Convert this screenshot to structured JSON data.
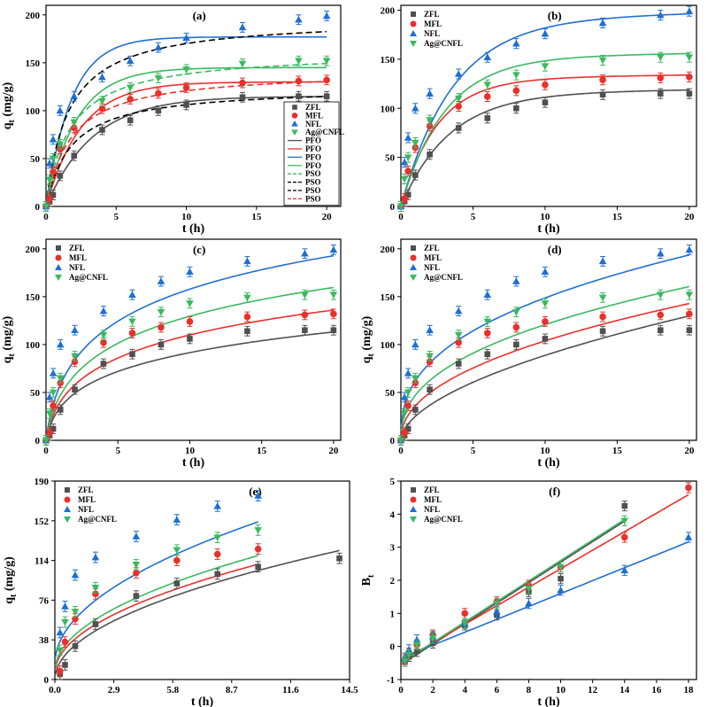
{
  "colors": {
    "ZFL": "#505050",
    "MFL": "#e8312c",
    "NFL": "#1f6fd0",
    "Ag@CNFL": "#3cb860"
  },
  "chart_data": [
    {
      "type": "scatter",
      "panel_label": "(a)",
      "xlabel": "t (h)",
      "ylabel": "q_t (mg/g)",
      "xlim": [
        0,
        21
      ],
      "ylim": [
        0,
        210
      ],
      "xticks": [
        0,
        5,
        10,
        15,
        20
      ],
      "yticks": [
        0,
        50,
        100,
        150,
        200
      ],
      "legend_position": "right-middle",
      "legend": [
        "ZFL",
        "MFL",
        "NFL",
        "Ag@CNFL",
        "PFO",
        "PFO",
        "PFO",
        "PFO",
        "PSO",
        "PSO",
        "PSO",
        "PSO"
      ],
      "x": [
        0,
        0.25,
        0.5,
        1,
        2,
        4,
        6,
        8,
        10,
        14,
        18,
        20
      ],
      "series": [
        {
          "name": "ZFL",
          "values": [
            0,
            5,
            12,
            32,
            53,
            80,
            90,
            100,
            106,
            114,
            115,
            115
          ]
        },
        {
          "name": "MFL",
          "values": [
            0,
            8,
            36,
            60,
            82,
            102,
            112,
            118,
            124,
            129,
            131,
            132
          ]
        },
        {
          "name": "NFL",
          "values": [
            0,
            45,
            70,
            100,
            115,
            135,
            152,
            166,
            176,
            187,
            195,
            199
          ]
        },
        {
          "name": "Ag@CNFL",
          "values": [
            0,
            28,
            50,
            65,
            88,
            110,
            124,
            134,
            143,
            149,
            152,
            152
          ]
        }
      ],
      "error_bar": 5,
      "fits": [
        {
          "model": "PFO",
          "series": "ZFL",
          "qe": 115,
          "k": 0.3
        },
        {
          "model": "PFO",
          "series": "MFL",
          "qe": 130,
          "k": 0.4
        },
        {
          "model": "PFO",
          "series": "NFL",
          "qe": 177,
          "k": 0.55
        },
        {
          "model": "PFO",
          "series": "Ag@CNFL",
          "qe": 145,
          "k": 0.45
        },
        {
          "model": "PSO",
          "series": "ZFL",
          "qe": 125,
          "k": 0.0045
        },
        {
          "model": "PSO",
          "series": "MFL",
          "qe": 142,
          "k": 0.004
        },
        {
          "model": "PSO",
          "series": "NFL",
          "qe": 197,
          "k": 0.0032
        },
        {
          "model": "PSO",
          "series": "Ag@CNFL",
          "qe": 162,
          "k": 0.0036
        }
      ]
    },
    {
      "type": "scatter",
      "panel_label": "(b)",
      "xlabel": "t (h)",
      "ylabel": "",
      "xlim": [
        0,
        20.5
      ],
      "ylim": [
        0,
        205
      ],
      "xticks": [
        0,
        5,
        10,
        15,
        20
      ],
      "yticks": [
        0,
        50,
        100,
        150,
        200
      ],
      "legend_position": "top-left",
      "legend": [
        "ZFL",
        "MFL",
        "NFL",
        "Ag@CNFL"
      ],
      "x": [
        0,
        0.25,
        0.5,
        1,
        2,
        4,
        6,
        8,
        10,
        14,
        18,
        20
      ],
      "series": [
        {
          "name": "ZFL",
          "values": [
            0,
            5,
            12,
            32,
            53,
            80,
            90,
            100,
            106,
            114,
            115,
            115
          ]
        },
        {
          "name": "MFL",
          "values": [
            0,
            8,
            36,
            60,
            82,
            102,
            112,
            118,
            124,
            129,
            131,
            132
          ]
        },
        {
          "name": "NFL",
          "values": [
            0,
            45,
            70,
            100,
            115,
            135,
            152,
            166,
            176,
            187,
            195,
            199
          ]
        },
        {
          "name": "Ag@CNFL",
          "values": [
            0,
            28,
            50,
            65,
            88,
            110,
            124,
            134,
            143,
            149,
            152,
            152
          ]
        }
      ],
      "error_bar": 5
    },
    {
      "type": "scatter",
      "panel_label": "(c)",
      "xlabel": "t (h)",
      "ylabel": "q_t (mg/g)",
      "xlim": [
        0,
        20.5
      ],
      "ylim": [
        0,
        210
      ],
      "xticks": [
        0,
        5,
        10,
        15,
        20
      ],
      "yticks": [
        0,
        50,
        100,
        150,
        200
      ],
      "legend_position": "top-left",
      "legend": [
        "ZFL",
        "MFL",
        "NFL",
        "Ag@CNFL"
      ],
      "x": [
        0,
        0.25,
        0.5,
        1,
        2,
        4,
        6,
        8,
        10,
        14,
        18,
        20
      ],
      "series": [
        {
          "name": "ZFL",
          "values": [
            0,
            5,
            12,
            32,
            53,
            80,
            90,
            100,
            106,
            114,
            115,
            115
          ]
        },
        {
          "name": "MFL",
          "values": [
            0,
            8,
            36,
            60,
            82,
            102,
            112,
            118,
            124,
            129,
            131,
            132
          ]
        },
        {
          "name": "NFL",
          "values": [
            0,
            45,
            70,
            100,
            115,
            135,
            152,
            166,
            176,
            187,
            195,
            199
          ]
        },
        {
          "name": "Ag@CNFL",
          "values": [
            0,
            28,
            50,
            65,
            88,
            110,
            124,
            134,
            143,
            149,
            152,
            152
          ]
        }
      ],
      "error_bar": 5
    },
    {
      "type": "scatter",
      "panel_label": "(d)",
      "xlabel": "t (h)",
      "ylabel": "q_t (mg/g)",
      "xlim": [
        0,
        20.5
      ],
      "ylim": [
        0,
        210
      ],
      "xticks": [
        0,
        5,
        10,
        15,
        20
      ],
      "yticks": [
        0,
        50,
        100,
        150,
        200
      ],
      "legend_position": "top-left",
      "legend": [
        "ZFL",
        "MFL",
        "NFL",
        "Ag@CNFL"
      ],
      "x": [
        0,
        0.25,
        0.5,
        1,
        2,
        4,
        6,
        8,
        10,
        14,
        18,
        20
      ],
      "series": [
        {
          "name": "ZFL",
          "values": [
            0,
            5,
            12,
            32,
            53,
            80,
            90,
            100,
            106,
            114,
            115,
            115
          ]
        },
        {
          "name": "MFL",
          "values": [
            0,
            8,
            36,
            60,
            82,
            102,
            112,
            118,
            124,
            129,
            131,
            132
          ]
        },
        {
          "name": "NFL",
          "values": [
            0,
            45,
            70,
            100,
            115,
            135,
            152,
            166,
            176,
            187,
            195,
            199
          ]
        },
        {
          "name": "Ag@CNFL",
          "values": [
            0,
            28,
            50,
            65,
            88,
            110,
            124,
            134,
            143,
            149,
            152,
            152
          ]
        }
      ],
      "error_bar": 5
    },
    {
      "type": "scatter",
      "panel_label": "(e)",
      "xlabel": "t (h)",
      "ylabel": "q_t (mg/g)",
      "xlim": [
        0,
        14.5
      ],
      "ylim": [
        0,
        190
      ],
      "xticks": [
        0.0,
        2.9,
        5.8,
        8.7,
        11.6,
        14.5
      ],
      "yticks": [
        0,
        38,
        76,
        114,
        152,
        190
      ],
      "xtick_labels": [
        "0.0",
        "2.9",
        "5.8",
        "8.7",
        "11.6",
        "14.5"
      ],
      "legend_position": "top-left",
      "legend": [
        "ZFL",
        "MFL",
        "NFL",
        "Ag@CNFL"
      ],
      "x": [
        0.25,
        0.5,
        1,
        2,
        4,
        6,
        8,
        10,
        14
      ],
      "series": [
        {
          "name": "ZFL",
          "values": [
            5,
            14,
            32,
            53,
            80,
            92,
            101,
            108,
            116
          ]
        },
        {
          "name": "MFL",
          "values": [
            8,
            36,
            58,
            82,
            102,
            114,
            120,
            125,
            null
          ]
        },
        {
          "name": "NFL",
          "values": [
            45,
            70,
            100,
            117,
            137,
            153,
            166,
            176,
            null
          ]
        },
        {
          "name": "Ag@CNFL",
          "values": [
            28,
            55,
            65,
            88,
            110,
            124,
            136,
            143,
            null
          ]
        }
      ],
      "error_bar": 5
    },
    {
      "type": "scatter",
      "panel_label": "(f)",
      "xlabel": "t (h)",
      "ylabel": "B_t",
      "xlim": [
        0,
        18.5
      ],
      "ylim": [
        -1,
        5
      ],
      "xticks": [
        0,
        2,
        4,
        6,
        8,
        10,
        12,
        14,
        16,
        18
      ],
      "yticks": [
        -1,
        0,
        1,
        2,
        3,
        4,
        5
      ],
      "legend_position": "top-left",
      "legend": [
        "ZFL",
        "MFL",
        "NFL",
        "Ag@CNFL"
      ],
      "x": [
        0.25,
        0.5,
        1,
        2,
        4,
        6,
        8,
        10,
        14,
        18
      ],
      "series": [
        {
          "name": "ZFL",
          "values": [
            -0.45,
            -0.3,
            -0.15,
            0.1,
            0.65,
            0.95,
            1.65,
            2.05,
            4.25,
            null
          ]
        },
        {
          "name": "MFL",
          "values": [
            -0.4,
            -0.2,
            0.05,
            0.35,
            1.0,
            1.35,
            1.85,
            2.4,
            3.3,
            4.8
          ]
        },
        {
          "name": "NFL",
          "values": [
            -0.35,
            -0.1,
            0.2,
            0.3,
            0.7,
            1.05,
            1.3,
            1.7,
            2.3,
            3.3
          ]
        },
        {
          "name": "Ag@CNFL",
          "values": [
            -0.45,
            -0.25,
            0.05,
            0.25,
            0.7,
            1.3,
            1.75,
            2.4,
            3.8,
            null
          ]
        }
      ],
      "error_bar": 0.15
    }
  ]
}
